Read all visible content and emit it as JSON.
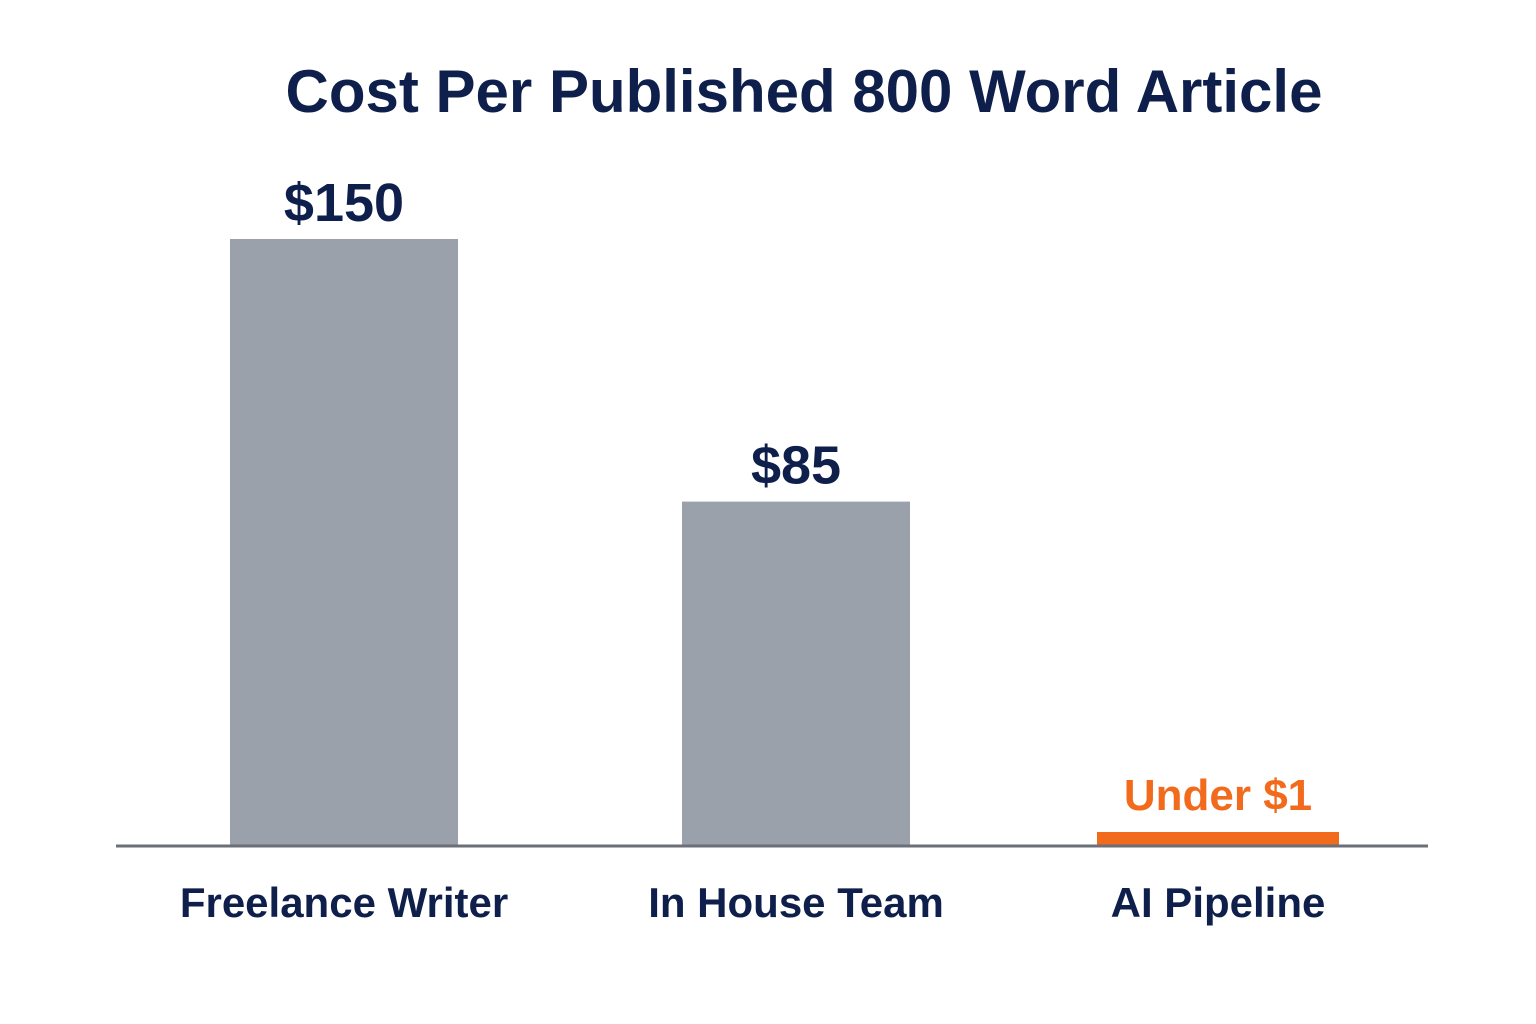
{
  "chart_data": {
    "type": "bar",
    "title": "Cost Per Published 800 Word Article",
    "categories": [
      "Freelance Writer",
      "In House Team",
      "AI Pipeline"
    ],
    "values": [
      150,
      85,
      1
    ],
    "value_labels": [
      "$150",
      "$85",
      "Under $1"
    ],
    "xlabel": "",
    "ylabel": "",
    "ylim": [
      0,
      150
    ],
    "grid": false,
    "legend": "none",
    "bar_colors": [
      "#9aa1ab",
      "#9aa1ab",
      "#f26b1d"
    ],
    "label_colors": [
      "#0f1f4b",
      "#0f1f4b",
      "#f26b1d"
    ]
  },
  "colors": {
    "title": "#0f1f4b",
    "axis": "#6b6f78",
    "bar_default": "#9aa1ab",
    "accent": "#f26b1d"
  }
}
